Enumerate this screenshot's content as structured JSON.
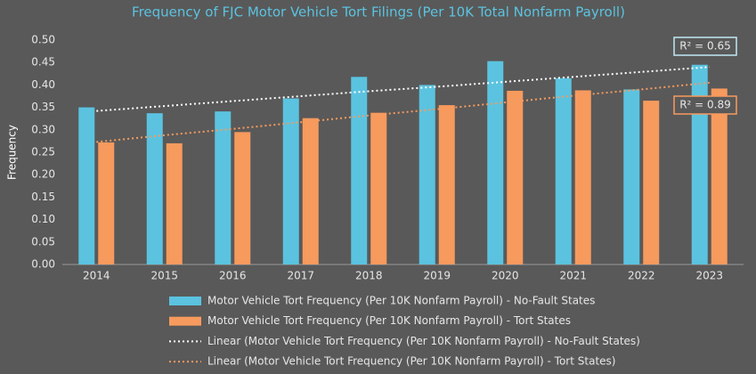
{
  "chart_data": {
    "type": "bar",
    "title": "Frequency of FJC Motor Vehicle Tort Filings (Per 10K Total Nonfarm Payroll)",
    "y_label": "Frequency",
    "categories": [
      "2014",
      "2015",
      "2016",
      "2017",
      "2018",
      "2019",
      "2020",
      "2021",
      "2022",
      "2023"
    ],
    "series": [
      {
        "name": "Motor Vehicle Tort Frequency (Per 10K Nonfarm Payroll) - No-Fault States",
        "type": "bar",
        "color": "#5bc3e0",
        "values": [
          0.35,
          0.337,
          0.341,
          0.37,
          0.418,
          0.4,
          0.453,
          0.415,
          0.39,
          0.445
        ]
      },
      {
        "name": "Motor Vehicle Tort Frequency (Per 10K Nonfarm Payroll) - Tort States",
        "type": "bar",
        "color": "#f79a5e",
        "values": [
          0.272,
          0.27,
          0.295,
          0.326,
          0.338,
          0.355,
          0.387,
          0.388,
          0.365,
          0.392
        ]
      },
      {
        "name": "Linear (Motor Vehicle Tort Frequency (Per 10K Nonfarm Payroll) - No-Fault States)",
        "type": "trendline",
        "color": "#ffffff",
        "values": [
          0.342,
          0.353,
          0.364,
          0.375,
          0.386,
          0.396,
          0.407,
          0.418,
          0.429,
          0.44
        ],
        "r2_label": "R² = 0.65",
        "r2_border": "#bfe9f5"
      },
      {
        "name": "Linear (Motor Vehicle Tort Frequency (Per 10K Nonfarm Payroll) - Tort States)",
        "type": "trendline",
        "color": "#f79a5e",
        "values": [
          0.273,
          0.288,
          0.302,
          0.317,
          0.332,
          0.346,
          0.361,
          0.376,
          0.39,
          0.405
        ],
        "r2_label": "R² = 0.89",
        "r2_border": "#f79a5e"
      }
    ],
    "ylim": [
      0,
      0.5
    ],
    "yticks": [
      {
        "value": 0,
        "label": "0.00"
      },
      {
        "value": 0.05,
        "label": "0.05"
      },
      {
        "value": 0.1,
        "label": "0.10"
      },
      {
        "value": 0.15,
        "label": "0.15"
      },
      {
        "value": 0.2,
        "label": "0.20"
      },
      {
        "value": 0.25,
        "label": "0.25"
      },
      {
        "value": 0.3,
        "label": "0.30"
      },
      {
        "value": 0.35,
        "label": "0.35"
      },
      {
        "value": 0.4,
        "label": "0.40"
      },
      {
        "value": 0.45,
        "label": "0.45"
      },
      {
        "value": 0.5,
        "label": "0.50"
      }
    ],
    "grid": false,
    "legend": "bottom"
  }
}
